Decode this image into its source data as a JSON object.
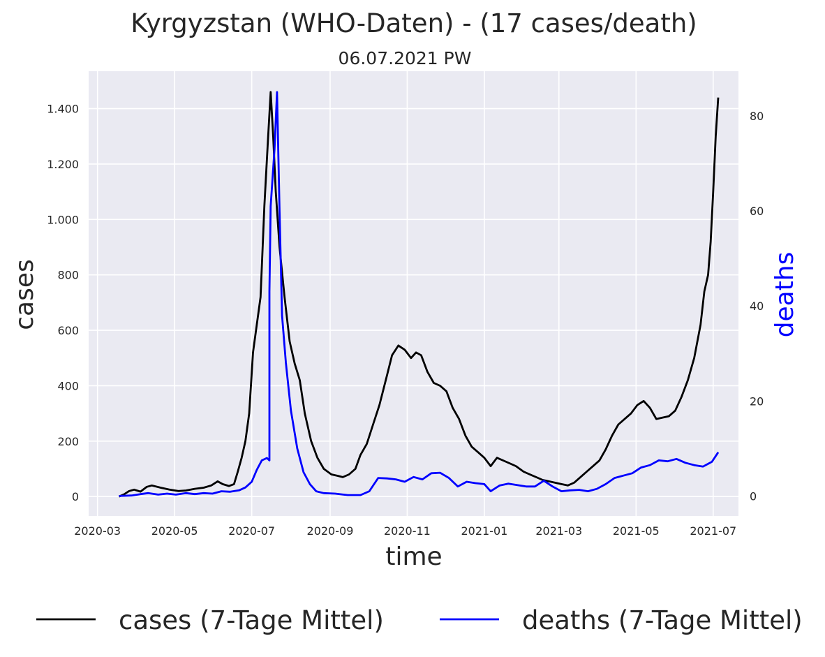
{
  "chart_data": {
    "type": "line",
    "title": "Kyrgyzstan (WHO-Daten) - (17 cases/death)",
    "subtitle": "06.07.2021 PW",
    "xlabel": "time",
    "ylabel": "cases",
    "y2label": "deaths",
    "grid": true,
    "legend_placement": "bottom",
    "x_ticks": [
      "2020-03-01",
      "2020-05-01",
      "2020-07-01",
      "2020-09-01",
      "2020-11-01",
      "2021-01-01",
      "2021-03-01",
      "2021-05-01",
      "2021-07-01"
    ],
    "x_tick_labels": [
      "2020-03",
      "2020-05",
      "2020-07",
      "2020-09",
      "2020-11",
      "2021-01",
      "2021-03",
      "2021-05",
      "2021-07"
    ],
    "xlim": [
      "2020-02-23",
      "2021-07-21"
    ],
    "ylim": [
      -70,
      1535
    ],
    "y_ticks": [
      0,
      200,
      400,
      600,
      800,
      1000,
      1200,
      1400
    ],
    "y_tick_labels": [
      "0",
      "200",
      "400",
      "600",
      "800",
      "1.000",
      "1.200",
      "1.400"
    ],
    "y2lim": [
      -4.2,
      89.4
    ],
    "y2_ticks": [
      0,
      20,
      40,
      60,
      80
    ],
    "y2_tick_labels": [
      "0",
      "20",
      "40",
      "60",
      "80"
    ],
    "series": [
      {
        "name": "cases (7-Tage Mittel)",
        "axis": "left",
        "color": "#000000",
        "points": [
          [
            "2020-03-18",
            0
          ],
          [
            "2020-03-22",
            8
          ],
          [
            "2020-03-26",
            20
          ],
          [
            "2020-03-30",
            25
          ],
          [
            "2020-04-04",
            18
          ],
          [
            "2020-04-09",
            35
          ],
          [
            "2020-04-13",
            40
          ],
          [
            "2020-04-20",
            32
          ],
          [
            "2020-04-27",
            25
          ],
          [
            "2020-05-04",
            20
          ],
          [
            "2020-05-10",
            22
          ],
          [
            "2020-05-17",
            28
          ],
          [
            "2020-05-24",
            32
          ],
          [
            "2020-05-30",
            40
          ],
          [
            "2020-06-04",
            55
          ],
          [
            "2020-06-08",
            45
          ],
          [
            "2020-06-13",
            38
          ],
          [
            "2020-06-17",
            45
          ],
          [
            "2020-06-20",
            90
          ],
          [
            "2020-06-23",
            140
          ],
          [
            "2020-06-26",
            200
          ],
          [
            "2020-06-29",
            300
          ],
          [
            "2020-07-02",
            520
          ],
          [
            "2020-07-05",
            620
          ],
          [
            "2020-07-08",
            720
          ],
          [
            "2020-07-11",
            1050
          ],
          [
            "2020-07-14",
            1300
          ],
          [
            "2020-07-16",
            1460
          ],
          [
            "2020-07-18",
            1300
          ],
          [
            "2020-07-20",
            1100
          ],
          [
            "2020-07-23",
            900
          ],
          [
            "2020-07-27",
            720
          ],
          [
            "2020-07-31",
            560
          ],
          [
            "2020-08-04",
            480
          ],
          [
            "2020-08-08",
            420
          ],
          [
            "2020-08-12",
            300
          ],
          [
            "2020-08-17",
            200
          ],
          [
            "2020-08-22",
            140
          ],
          [
            "2020-08-27",
            100
          ],
          [
            "2020-09-02",
            80
          ],
          [
            "2020-09-07",
            75
          ],
          [
            "2020-09-11",
            70
          ],
          [
            "2020-09-16",
            80
          ],
          [
            "2020-09-21",
            100
          ],
          [
            "2020-09-25",
            150
          ],
          [
            "2020-09-30",
            190
          ],
          [
            "2020-10-05",
            260
          ],
          [
            "2020-10-10",
            330
          ],
          [
            "2020-10-15",
            420
          ],
          [
            "2020-10-20",
            510
          ],
          [
            "2020-10-25",
            545
          ],
          [
            "2020-10-30",
            530
          ],
          [
            "2020-11-04",
            500
          ],
          [
            "2020-11-08",
            520
          ],
          [
            "2020-11-12",
            510
          ],
          [
            "2020-11-17",
            450
          ],
          [
            "2020-11-22",
            410
          ],
          [
            "2020-11-27",
            400
          ],
          [
            "2020-12-02",
            380
          ],
          [
            "2020-12-07",
            320
          ],
          [
            "2020-12-12",
            280
          ],
          [
            "2020-12-17",
            220
          ],
          [
            "2020-12-22",
            180
          ],
          [
            "2020-12-27",
            160
          ],
          [
            "2021-01-01",
            140
          ],
          [
            "2021-01-06",
            110
          ],
          [
            "2021-01-11",
            140
          ],
          [
            "2021-01-16",
            130
          ],
          [
            "2021-01-21",
            120
          ],
          [
            "2021-01-26",
            110
          ],
          [
            "2021-02-01",
            90
          ],
          [
            "2021-02-06",
            80
          ],
          [
            "2021-02-11",
            70
          ],
          [
            "2021-02-16",
            60
          ],
          [
            "2021-02-21",
            55
          ],
          [
            "2021-02-26",
            50
          ],
          [
            "2021-03-03",
            45
          ],
          [
            "2021-03-08",
            40
          ],
          [
            "2021-03-13",
            50
          ],
          [
            "2021-03-18",
            70
          ],
          [
            "2021-03-23",
            90
          ],
          [
            "2021-03-28",
            110
          ],
          [
            "2021-04-02",
            130
          ],
          [
            "2021-04-07",
            170
          ],
          [
            "2021-04-12",
            220
          ],
          [
            "2021-04-17",
            260
          ],
          [
            "2021-04-22",
            280
          ],
          [
            "2021-04-27",
            300
          ],
          [
            "2021-05-02",
            330
          ],
          [
            "2021-05-07",
            345
          ],
          [
            "2021-05-12",
            320
          ],
          [
            "2021-05-17",
            280
          ],
          [
            "2021-05-22",
            285
          ],
          [
            "2021-05-27",
            290
          ],
          [
            "2021-06-01",
            310
          ],
          [
            "2021-06-06",
            360
          ],
          [
            "2021-06-11",
            420
          ],
          [
            "2021-06-16",
            500
          ],
          [
            "2021-06-21",
            620
          ],
          [
            "2021-06-24",
            740
          ],
          [
            "2021-06-27",
            800
          ],
          [
            "2021-06-29",
            920
          ],
          [
            "2021-07-01",
            1100
          ],
          [
            "2021-07-03",
            1300
          ],
          [
            "2021-07-05",
            1440
          ]
        ]
      },
      {
        "name": "deaths (7-Tage Mittel)",
        "axis": "right",
        "color": "#0000ff",
        "points": [
          [
            "2020-03-18",
            0
          ],
          [
            "2020-03-28",
            0.1
          ],
          [
            "2020-04-04",
            0.4
          ],
          [
            "2020-04-10",
            0.6
          ],
          [
            "2020-04-18",
            0.3
          ],
          [
            "2020-04-25",
            0.5
          ],
          [
            "2020-05-02",
            0.3
          ],
          [
            "2020-05-10",
            0.6
          ],
          [
            "2020-05-17",
            0.4
          ],
          [
            "2020-05-24",
            0.6
          ],
          [
            "2020-05-31",
            0.5
          ],
          [
            "2020-06-07",
            1.0
          ],
          [
            "2020-06-14",
            0.9
          ],
          [
            "2020-06-21",
            1.2
          ],
          [
            "2020-06-26",
            1.8
          ],
          [
            "2020-07-01",
            3.0
          ],
          [
            "2020-07-05",
            5.5
          ],
          [
            "2020-07-09",
            7.5
          ],
          [
            "2020-07-13",
            8.0
          ],
          [
            "2020-07-15",
            7.5
          ],
          [
            "2020-07-15",
            43
          ],
          [
            "2020-07-16",
            61
          ],
          [
            "2020-07-19",
            73
          ],
          [
            "2020-07-21",
            85
          ],
          [
            "2020-07-23",
            60
          ],
          [
            "2020-07-25",
            38
          ],
          [
            "2020-07-28",
            28
          ],
          [
            "2020-08-01",
            18
          ],
          [
            "2020-08-06",
            10
          ],
          [
            "2020-08-11",
            5
          ],
          [
            "2020-08-16",
            2.5
          ],
          [
            "2020-08-21",
            1
          ],
          [
            "2020-08-27",
            0.6
          ],
          [
            "2020-09-05",
            0.5
          ],
          [
            "2020-09-15",
            0.2
          ],
          [
            "2020-09-25",
            0.2
          ],
          [
            "2020-10-02",
            1
          ],
          [
            "2020-10-09",
            3.8
          ],
          [
            "2020-10-16",
            3.7
          ],
          [
            "2020-10-23",
            3.5
          ],
          [
            "2020-10-30",
            3.0
          ],
          [
            "2020-11-06",
            4.0
          ],
          [
            "2020-11-13",
            3.5
          ],
          [
            "2020-11-20",
            4.8
          ],
          [
            "2020-11-27",
            4.9
          ],
          [
            "2020-12-04",
            3.8
          ],
          [
            "2020-12-11",
            2.0
          ],
          [
            "2020-12-18",
            3.0
          ],
          [
            "2020-12-25",
            2.7
          ],
          [
            "2021-01-01",
            2.5
          ],
          [
            "2021-01-06",
            1.0
          ],
          [
            "2021-01-13",
            2.2
          ],
          [
            "2021-01-20",
            2.6
          ],
          [
            "2021-01-27",
            2.3
          ],
          [
            "2021-02-03",
            2.0
          ],
          [
            "2021-02-10",
            2.0
          ],
          [
            "2021-02-17",
            3.2
          ],
          [
            "2021-02-24",
            2.0
          ],
          [
            "2021-03-03",
            1.0
          ],
          [
            "2021-03-10",
            1.2
          ],
          [
            "2021-03-17",
            1.3
          ],
          [
            "2021-03-24",
            1.0
          ],
          [
            "2021-03-31",
            1.5
          ],
          [
            "2021-04-07",
            2.5
          ],
          [
            "2021-04-14",
            3.8
          ],
          [
            "2021-04-21",
            4.3
          ],
          [
            "2021-04-28",
            4.8
          ],
          [
            "2021-05-05",
            6.0
          ],
          [
            "2021-05-12",
            6.5
          ],
          [
            "2021-05-19",
            7.5
          ],
          [
            "2021-05-26",
            7.3
          ],
          [
            "2021-06-02",
            7.8
          ],
          [
            "2021-06-09",
            7.0
          ],
          [
            "2021-06-16",
            6.5
          ],
          [
            "2021-06-23",
            6.2
          ],
          [
            "2021-06-30",
            7.2
          ],
          [
            "2021-07-05",
            9.2
          ]
        ]
      }
    ]
  }
}
